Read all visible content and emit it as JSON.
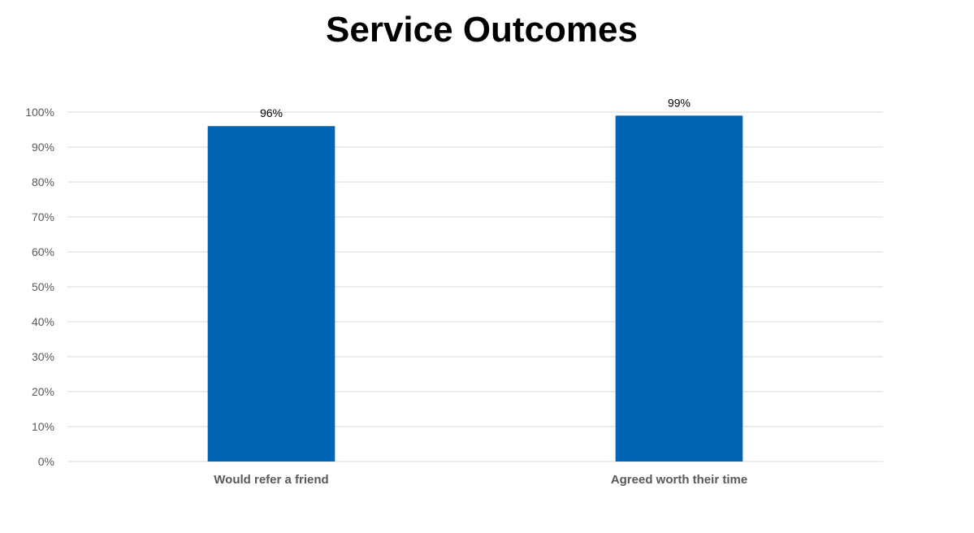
{
  "chart_data": {
    "type": "bar",
    "title": "Service Outcomes",
    "categories": [
      "Would refer a friend",
      "Agreed worth their time"
    ],
    "values": [
      96,
      99
    ],
    "data_labels": [
      "96%",
      "99%"
    ],
    "ylim": [
      0,
      100
    ],
    "yticks": [
      0,
      10,
      20,
      30,
      40,
      50,
      60,
      70,
      80,
      90,
      100
    ],
    "ytick_labels": [
      "0%",
      "10%",
      "20%",
      "30%",
      "40%",
      "50%",
      "60%",
      "70%",
      "80%",
      "90%",
      "100%"
    ],
    "xlabel": "",
    "ylabel": "",
    "grid": true,
    "legend": "none",
    "colors": {
      "bar": "#0066B3",
      "grid": "#D9D9D9"
    }
  }
}
